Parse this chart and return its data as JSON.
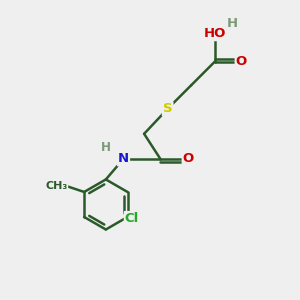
{
  "background_color": "#efefef",
  "bond_color": "#2a5a2a",
  "bond_width": 1.8,
  "atom_colors": {
    "O": "#cc0000",
    "S": "#cccc00",
    "N": "#1a1acc",
    "Cl": "#22aa22",
    "C": "#2a5a2a",
    "H": "#7a9a7a"
  },
  "font_size": 9.5
}
